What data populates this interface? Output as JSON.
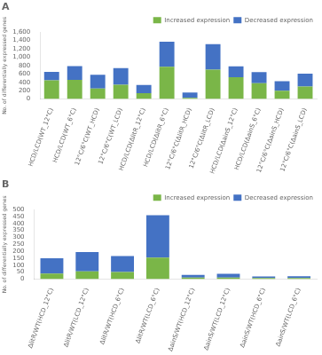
{
  "chart_data": [
    {
      "type": "bar",
      "title": "A",
      "stacked": true,
      "legend": "upper right",
      "grid": false,
      "categories": [
        "HCD/LCD(WT_12°C)",
        "HCD/LCD(WT_6°C)",
        "12°C/6°C(WT_HCD)",
        "12°C/6°C(WT_LCD)",
        "HCD/LCD(ΔlitR_12°C)",
        "HCD/LCD(ΔlitR_6°C)",
        "12°C/6°C(ΔlitR_HCD)",
        "12°C/6°C(ΔlitR_LCD)",
        "HCD/LCD(ΔainS_12°C)",
        "HCD/LCD(ΔainS_6°C)",
        "12°C/6°C(ΔainS_HCD)",
        "12°C/6°C(ΔainS_LCD)"
      ],
      "series": [
        {
          "name": "Increased expression",
          "color": "#7ab648",
          "values": [
            450,
            460,
            250,
            340,
            140,
            770,
            30,
            700,
            520,
            380,
            200,
            300
          ]
        },
        {
          "name": "Decreased expression",
          "color": "#4472c4",
          "values": [
            200,
            330,
            330,
            400,
            195,
            600,
            125,
            610,
            260,
            265,
            225,
            305
          ]
        }
      ],
      "ylabel": "No. of differentially expressed genes",
      "ylim": [
        0,
        1600
      ],
      "yticks": [
        0,
        200,
        400,
        600,
        800,
        1000,
        1200,
        1400,
        1600
      ]
    },
    {
      "type": "bar",
      "title": "B",
      "stacked": true,
      "legend": "upper right",
      "grid": false,
      "categories": [
        "ΔlitR/WT(HCD_12°C)",
        "ΔlitR/WT(LCD_12°C)",
        "ΔlitR/WT(HCD_6°C)",
        "ΔlitR/WT(LCD_6°C)",
        "ΔainS/WT(HCD_12°C)",
        "ΔainS/WT(LCD_12°C)",
        "ΔainS/WT(HCD_6°C)",
        "ΔainS/WT(LCD_6°C)"
      ],
      "series": [
        {
          "name": "Increased expression",
          "color": "#7ab648",
          "values": [
            40,
            55,
            50,
            155,
            10,
            10,
            8,
            8
          ]
        },
        {
          "name": "Decreased expression",
          "color": "#4472c4",
          "values": [
            110,
            140,
            115,
            305,
            20,
            28,
            10,
            12
          ]
        }
      ],
      "ylabel": "No. of differentially expressed genes",
      "ylim": [
        0,
        500
      ],
      "yticks": [
        0,
        50,
        100,
        150,
        200,
        250,
        300,
        350,
        400,
        450,
        500
      ]
    }
  ]
}
